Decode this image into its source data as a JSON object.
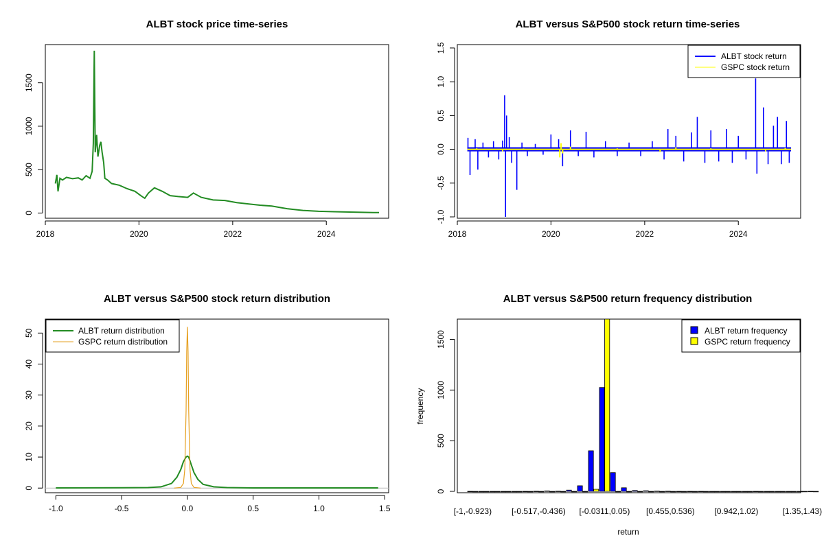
{
  "chart_data": [
    {
      "type": "line",
      "title": "ALBT stock price time-series",
      "xlabel": "",
      "ylabel": "",
      "xlim": [
        "2018-01-01",
        "2025-05-01"
      ],
      "ylim": [
        -60,
        1940
      ],
      "x_ticks": [
        "2018",
        "2020",
        "2022",
        "2024"
      ],
      "y_ticks": [
        "0",
        "500",
        "1000",
        "1500"
      ],
      "series": [
        {
          "color": "#228B22",
          "points": [
            [
              "2018-03-20",
              340
            ],
            [
              "2018-04-01",
              440
            ],
            [
              "2018-04-10",
              250
            ],
            [
              "2018-04-25",
              400
            ],
            [
              "2018-05-15",
              380
            ],
            [
              "2018-06-15",
              410
            ],
            [
              "2018-08-01",
              395
            ],
            [
              "2018-09-15",
              405
            ],
            [
              "2018-10-15",
              380
            ],
            [
              "2018-11-15",
              430
            ],
            [
              "2018-12-15",
              400
            ],
            [
              "2019-01-01",
              480
            ],
            [
              "2019-01-10",
              800
            ],
            [
              "2019-01-18",
              1870
            ],
            [
              "2019-01-25",
              700
            ],
            [
              "2019-02-05",
              900
            ],
            [
              "2019-02-15",
              650
            ],
            [
              "2019-03-01",
              780
            ],
            [
              "2019-03-10",
              820
            ],
            [
              "2019-03-20",
              700
            ],
            [
              "2019-04-01",
              580
            ],
            [
              "2019-04-10",
              400
            ],
            [
              "2019-05-01",
              380
            ],
            [
              "2019-06-01",
              340
            ],
            [
              "2019-08-01",
              320
            ],
            [
              "2019-10-01",
              280
            ],
            [
              "2019-12-01",
              250
            ],
            [
              "2020-01-15",
              200
            ],
            [
              "2020-02-15",
              170
            ],
            [
              "2020-03-15",
              230
            ],
            [
              "2020-05-01",
              290
            ],
            [
              "2020-07-01",
              250
            ],
            [
              "2020-09-01",
              200
            ],
            [
              "2020-11-01",
              190
            ],
            [
              "2021-01-15",
              180
            ],
            [
              "2021-03-01",
              230
            ],
            [
              "2021-05-01",
              180
            ],
            [
              "2021-08-01",
              150
            ],
            [
              "2021-11-01",
              145
            ],
            [
              "2022-02-01",
              120
            ],
            [
              "2022-05-01",
              105
            ],
            [
              "2022-08-01",
              90
            ],
            [
              "2022-11-01",
              80
            ],
            [
              "2023-03-01",
              50
            ],
            [
              "2023-07-01",
              30
            ],
            [
              "2023-11-01",
              20
            ],
            [
              "2024-03-01",
              15
            ],
            [
              "2024-08-01",
              10
            ],
            [
              "2025-01-01",
              6
            ],
            [
              "2025-02-15",
              5
            ]
          ]
        }
      ]
    },
    {
      "type": "line",
      "title": "ALBT versus S&P500 stock return time-series",
      "xlabel": "",
      "ylabel": "",
      "xlim": [
        "2018-01-01",
        "2025-05-01"
      ],
      "ylim": [
        -1.02,
        1.55
      ],
      "x_ticks": [
        "2018",
        "2020",
        "2022",
        "2024"
      ],
      "y_ticks": [
        "-1.0",
        "-0.5",
        "0.0",
        "0.5",
        "1.0",
        "1.5"
      ],
      "legend_position": "top-right",
      "series": [
        {
          "name": "ALBT stock return",
          "color": "#0000FF",
          "spikes": [
            [
              "2018-03-25",
              0.17
            ],
            [
              "2018-04-10",
              -0.38
            ],
            [
              "2018-05-20",
              0.15
            ],
            [
              "2018-06-10",
              -0.3
            ],
            [
              "2018-07-20",
              0.1
            ],
            [
              "2018-09-01",
              -0.12
            ],
            [
              "2018-10-10",
              0.12
            ],
            [
              "2018-11-20",
              -0.15
            ],
            [
              "2018-12-20",
              0.13
            ],
            [
              "2019-01-05",
              0.8
            ],
            [
              "2019-01-12",
              -1.0
            ],
            [
              "2019-01-20",
              0.5
            ],
            [
              "2019-02-10",
              0.18
            ],
            [
              "2019-03-01",
              -0.2
            ],
            [
              "2019-04-10",
              -0.6
            ],
            [
              "2019-05-20",
              0.1
            ],
            [
              "2019-07-01",
              -0.1
            ],
            [
              "2019-09-01",
              0.08
            ],
            [
              "2019-11-01",
              -0.08
            ],
            [
              "2020-01-01",
              0.22
            ],
            [
              "2020-03-01",
              0.15
            ],
            [
              "2020-04-01",
              -0.25
            ],
            [
              "2020-06-01",
              0.28
            ],
            [
              "2020-08-01",
              -0.1
            ],
            [
              "2020-10-01",
              0.26
            ],
            [
              "2020-12-01",
              -0.12
            ],
            [
              "2021-03-01",
              0.12
            ],
            [
              "2021-06-01",
              -0.1
            ],
            [
              "2021-09-01",
              0.1
            ],
            [
              "2021-12-01",
              -0.1
            ],
            [
              "2022-03-01",
              0.12
            ],
            [
              "2022-06-01",
              -0.15
            ],
            [
              "2022-07-01",
              0.3
            ],
            [
              "2022-09-01",
              0.2
            ],
            [
              "2022-11-01",
              -0.18
            ],
            [
              "2023-01-01",
              0.25
            ],
            [
              "2023-02-15",
              0.48
            ],
            [
              "2023-04-15",
              -0.2
            ],
            [
              "2023-06-01",
              0.28
            ],
            [
              "2023-08-01",
              -0.18
            ],
            [
              "2023-10-01",
              0.3
            ],
            [
              "2023-11-15",
              -0.2
            ],
            [
              "2024-01-01",
              0.2
            ],
            [
              "2024-03-01",
              -0.15
            ],
            [
              "2024-05-15",
              1.05
            ],
            [
              "2024-05-25",
              -0.36
            ],
            [
              "2024-07-15",
              0.62
            ],
            [
              "2024-08-20",
              -0.22
            ],
            [
              "2024-10-01",
              0.35
            ],
            [
              "2024-11-01",
              0.48
            ],
            [
              "2024-12-01",
              -0.22
            ],
            [
              "2025-01-10",
              0.42
            ],
            [
              "2025-02-01",
              -0.2
            ]
          ]
        },
        {
          "name": "GSPC stock return",
          "color": "#FFFF00",
          "spikes": [
            [
              "2018-06-01",
              0.015
            ],
            [
              "2018-12-20",
              -0.03
            ],
            [
              "2019-06-01",
              0.012
            ],
            [
              "2020-03-10",
              -0.12
            ],
            [
              "2020-03-20",
              0.09
            ],
            [
              "2020-04-01",
              -0.06
            ],
            [
              "2020-06-01",
              0.04
            ],
            [
              "2021-06-01",
              0.015
            ],
            [
              "2022-05-01",
              -0.04
            ],
            [
              "2022-09-01",
              0.03
            ],
            [
              "2023-06-01",
              0.015
            ],
            [
              "2024-08-01",
              -0.03
            ],
            [
              "2025-01-01",
              0.02
            ]
          ]
        }
      ]
    },
    {
      "type": "line",
      "title": "ALBT versus S&P500 stock return distribution",
      "xlabel": "",
      "ylabel": "",
      "xlim": [
        -1.08,
        1.53
      ],
      "ylim": [
        -1.5,
        54.5
      ],
      "x_ticks": [
        "-1.0",
        "-0.5",
        "0.0",
        "0.5",
        "1.0",
        "1.5"
      ],
      "y_ticks": [
        "0",
        "10",
        "20",
        "30",
        "40",
        "50"
      ],
      "legend_position": "top-left",
      "series": [
        {
          "name": "ALBT return distribution",
          "color": "#228B22",
          "points": [
            [
              -1.0,
              0.05
            ],
            [
              -0.5,
              0.1
            ],
            [
              -0.3,
              0.15
            ],
            [
              -0.2,
              0.4
            ],
            [
              -0.12,
              1.5
            ],
            [
              -0.08,
              3.5
            ],
            [
              -0.05,
              6.0
            ],
            [
              -0.03,
              8.5
            ],
            [
              -0.01,
              10.0
            ],
            [
              0.0,
              10.3
            ],
            [
              0.01,
              10.0
            ],
            [
              0.03,
              7.5
            ],
            [
              0.05,
              5.0
            ],
            [
              0.08,
              2.8
            ],
            [
              0.12,
              1.2
            ],
            [
              0.2,
              0.4
            ],
            [
              0.3,
              0.15
            ],
            [
              0.5,
              0.05
            ],
            [
              1.0,
              0.05
            ],
            [
              1.45,
              0.05
            ]
          ]
        },
        {
          "name": "GSPC return distribution",
          "color": "#E6A020",
          "points": [
            [
              -0.1,
              0.0
            ],
            [
              -0.05,
              0.2
            ],
            [
              -0.03,
              1.5
            ],
            [
              -0.02,
              6.0
            ],
            [
              -0.01,
              25.0
            ],
            [
              -0.005,
              44.0
            ],
            [
              0.0,
              52.0
            ],
            [
              0.005,
              44.0
            ],
            [
              0.01,
              25.0
            ],
            [
              0.02,
              6.0
            ],
            [
              0.03,
              1.5
            ],
            [
              0.05,
              0.2
            ],
            [
              0.1,
              0.0
            ]
          ]
        }
      ]
    },
    {
      "type": "bar",
      "title": "ALBT versus S&P500 return frequency distribution",
      "xlabel": "return",
      "ylabel": "frequency",
      "ylim": [
        0,
        1700
      ],
      "y_ticks": [
        "0",
        "500",
        "1000",
        "1500"
      ],
      "legend_position": "top-right",
      "categories": [
        "[-1,-0.923)",
        "",
        "",
        "",
        "",
        "",
        "[-0.517,-0.436)",
        "",
        "",
        "",
        "",
        "",
        "[-0.0311,0.05)",
        "",
        "",
        "",
        "",
        "",
        "[0.455,0.536)",
        "",
        "",
        "",
        "",
        "",
        "[0.942,1.02)",
        "",
        "",
        "",
        "",
        "",
        "[1.35,1.43)",
        ""
      ],
      "series": [
        {
          "name": "ALBT return frequency",
          "color": "#0000FF",
          "values": [
            1,
            0,
            0,
            0,
            0,
            1,
            2,
            5,
            3,
            12,
            55,
            400,
            1025,
            185,
            35,
            8,
            6,
            4,
            3,
            1,
            1,
            1,
            0,
            0,
            0,
            0,
            1,
            0,
            0,
            0,
            0,
            1
          ]
        },
        {
          "name": "GSPC return frequency",
          "color": "#FFFF00",
          "values": [
            0,
            0,
            0,
            0,
            0,
            0,
            0,
            0,
            0,
            0,
            0,
            20,
            1730,
            0,
            0,
            0,
            0,
            0,
            0,
            0,
            0,
            0,
            0,
            0,
            0,
            0,
            0,
            0,
            0,
            0,
            0,
            0
          ]
        }
      ]
    }
  ]
}
